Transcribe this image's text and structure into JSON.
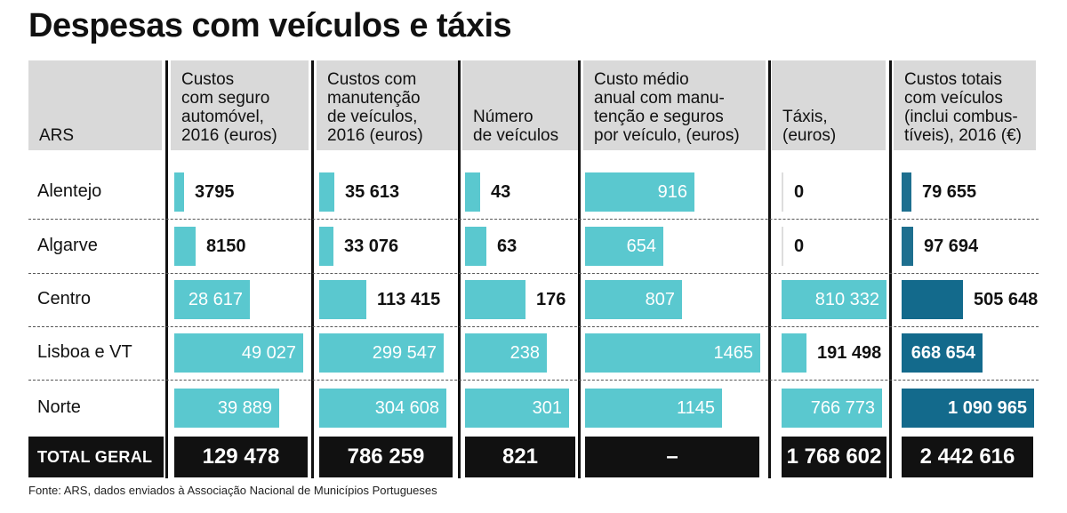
{
  "title": "Despesas com veículos e táxis",
  "source": "Fonte: ARS, dados enviados à Associação Nacional de Municípios Portugueses",
  "colors": {
    "bar_light": "#5ac8cf",
    "bar_dark_small": "#1e6f8f",
    "bar_dark": "#136a8c",
    "header_bg": "#d9d9d9",
    "total_bg": "#111111"
  },
  "chart_data": {
    "type": "table",
    "row_header": "ARS",
    "columns": [
      "Custos\ncom seguro\nautomóvel,\n2016 (euros)",
      "Custos com\nmanutenção\nde veículos,\n2016 (euros)",
      "Número\nde veículos",
      "Custo médio\nanual com manu-\ntenção e seguros\npor veículo, (euros)",
      "Táxis, (euros)",
      "Custos totais\ncom veículos\n(inclui combus-\ntíveis), 2016 (€)"
    ],
    "rows": [
      {
        "label": "Alentejo",
        "values": [
          3795,
          35613,
          43,
          916,
          0,
          79655
        ],
        "display": [
          "3795",
          "35 613",
          "43",
          "916",
          "0",
          "79 655"
        ]
      },
      {
        "label": "Algarve",
        "values": [
          8150,
          33076,
          63,
          654,
          0,
          97694
        ],
        "display": [
          "8150",
          "33 076",
          "63",
          "654",
          "0",
          "97 694"
        ]
      },
      {
        "label": "Centro",
        "values": [
          28617,
          113415,
          176,
          807,
          810332,
          505648
        ],
        "display": [
          "28 617",
          "113 415",
          "176",
          "807",
          "810 332",
          "505 648"
        ]
      },
      {
        "label": "Lisboa e VT",
        "values": [
          49027,
          299547,
          238,
          1465,
          191498,
          668654
        ],
        "display": [
          "49 027",
          "299 547",
          "238",
          "1465",
          "191 498",
          "668 654"
        ]
      },
      {
        "label": "Norte",
        "values": [
          39889,
          304608,
          301,
          1145,
          766773,
          1090965
        ],
        "display": [
          "39 889",
          "304 608",
          "301",
          "1145",
          "766 773",
          "1 090 965"
        ]
      }
    ],
    "total": {
      "label": "TOTAL GERAL",
      "display": [
        "129 478",
        "786 259",
        "821",
        "–",
        "1 768 602",
        "2 442 616"
      ]
    }
  }
}
